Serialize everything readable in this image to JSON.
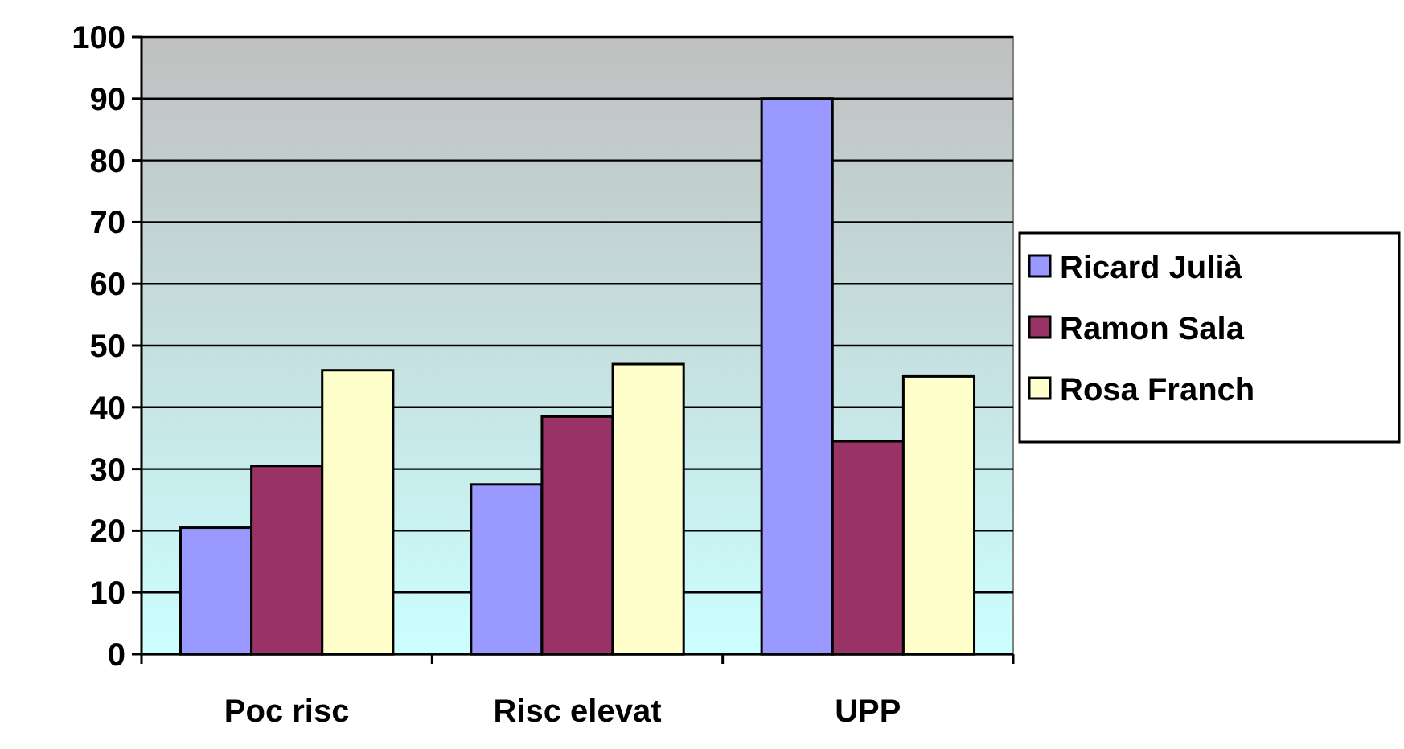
{
  "chart_data": {
    "type": "bar",
    "categories": [
      "Poc risc",
      "Risc elevat",
      "UPP"
    ],
    "series": [
      {
        "name": "Ricard Julià",
        "color": "#9999ff",
        "values": [
          20.5,
          27.5,
          90
        ]
      },
      {
        "name": "Ramon Sala",
        "color": "#993366",
        "values": [
          30.5,
          38.5,
          34.5
        ]
      },
      {
        "name": "Rosa Franch",
        "color": "#ffffcc",
        "values": [
          46,
          47,
          45
        ]
      }
    ],
    "ylim": [
      0,
      100
    ],
    "yticks": [
      0,
      10,
      20,
      30,
      40,
      50,
      60,
      70,
      80,
      90,
      100
    ],
    "grid": "y",
    "legend": "right"
  }
}
